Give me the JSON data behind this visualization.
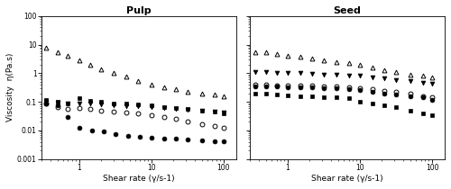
{
  "title_left": "Pulp",
  "title_right": "Seed",
  "xlabel": "Shear rate (γ/s-1)",
  "ylabel": "Viscosity  η(Pa.s)",
  "xlim": [
    0.3,
    150
  ],
  "ylim": [
    0.001,
    100
  ],
  "pulp": {
    "triangle_open": {
      "x": [
        0.35,
        0.5,
        0.7,
        1.0,
        1.4,
        2.0,
        3.0,
        4.5,
        6.5,
        10,
        15,
        22,
        32,
        50,
        75,
        100
      ],
      "y": [
        8.0,
        5.5,
        4.0,
        2.8,
        1.9,
        1.4,
        1.0,
        0.75,
        0.55,
        0.4,
        0.32,
        0.27,
        0.23,
        0.2,
        0.18,
        0.16
      ],
      "marker": "^",
      "filled": false,
      "color": "black",
      "ms": 3.5
    },
    "square_filled": {
      "x": [
        0.35,
        0.5,
        0.7,
        1.0,
        1.4,
        2.0,
        3.0,
        4.5,
        6.5,
        10,
        15,
        22,
        32,
        50,
        75,
        100
      ],
      "y": [
        0.12,
        0.1,
        0.09,
        0.13,
        0.11,
        0.1,
        0.09,
        0.09,
        0.08,
        0.075,
        0.065,
        0.06,
        0.055,
        0.05,
        0.045,
        0.04
      ],
      "marker": "s",
      "filled": true,
      "color": "black",
      "ms": 3.5
    },
    "triangle_filled": {
      "x": [
        0.35,
        0.5,
        0.7,
        1.0,
        1.4,
        2.0,
        3.0,
        4.5,
        6.5,
        10,
        15,
        22,
        32,
        50,
        75,
        100
      ],
      "y": [
        0.1,
        0.095,
        0.085,
        0.085,
        0.085,
        0.08,
        0.075,
        0.072,
        0.068,
        0.065,
        0.06,
        0.055,
        0.052,
        0.048,
        0.045,
        0.042
      ],
      "marker": "v",
      "filled": true,
      "color": "black",
      "ms": 3.5
    },
    "circle_open": {
      "x": [
        0.35,
        0.5,
        0.7,
        1.0,
        1.4,
        2.0,
        3.0,
        4.5,
        6.5,
        10,
        15,
        22,
        32,
        50,
        75,
        100
      ],
      "y": [
        0.085,
        0.065,
        0.055,
        0.06,
        0.055,
        0.05,
        0.045,
        0.042,
        0.038,
        0.035,
        0.03,
        0.025,
        0.02,
        0.016,
        0.014,
        0.012
      ],
      "marker": "o",
      "filled": false,
      "color": "black",
      "ms": 3.5
    },
    "circle_filled": {
      "x": [
        0.35,
        0.5,
        0.7,
        1.0,
        1.5,
        2.2,
        3.2,
        4.8,
        7,
        10,
        15,
        22,
        32,
        50,
        75,
        100
      ],
      "y": [
        0.09,
        0.075,
        0.03,
        0.012,
        0.01,
        0.009,
        0.0075,
        0.0065,
        0.0058,
        0.0055,
        0.0052,
        0.005,
        0.0048,
        0.0045,
        0.0043,
        0.0042
      ],
      "marker": "o",
      "filled": true,
      "color": "black",
      "ms": 3.5
    }
  },
  "seed": {
    "triangle_open": {
      "x": [
        0.35,
        0.5,
        0.7,
        1.0,
        1.5,
        2.2,
        3.2,
        4.8,
        7,
        10,
        15,
        22,
        32,
        50,
        75,
        100
      ],
      "y": [
        5.5,
        5.5,
        4.8,
        4.2,
        3.8,
        3.2,
        2.8,
        2.5,
        2.2,
        1.9,
        1.6,
        1.3,
        1.1,
        0.9,
        0.8,
        0.7
      ],
      "marker": "^",
      "filled": false,
      "color": "black",
      "ms": 3.5
    },
    "triangle_filled": {
      "x": [
        0.35,
        0.5,
        0.7,
        1.0,
        1.5,
        2.2,
        3.2,
        4.8,
        7,
        10,
        15,
        22,
        32,
        50,
        75,
        100
      ],
      "y": [
        1.1,
        1.1,
        1.05,
        1.0,
        1.0,
        0.95,
        0.9,
        0.88,
        0.85,
        0.8,
        0.72,
        0.65,
        0.58,
        0.52,
        0.46,
        0.42
      ],
      "marker": "v",
      "filled": true,
      "color": "black",
      "ms": 3.5
    },
    "circle_open": {
      "x": [
        0.35,
        0.5,
        0.7,
        1.0,
        1.5,
        2.2,
        3.2,
        4.8,
        7,
        10,
        15,
        22,
        32,
        50,
        75,
        100
      ],
      "y": [
        0.4,
        0.4,
        0.38,
        0.38,
        0.37,
        0.36,
        0.35,
        0.34,
        0.33,
        0.3,
        0.27,
        0.24,
        0.22,
        0.19,
        0.16,
        0.14
      ],
      "marker": "o",
      "filled": false,
      "color": "black",
      "ms": 3.5
    },
    "circle_filled": {
      "x": [
        0.35,
        0.5,
        0.7,
        1.0,
        1.5,
        2.2,
        3.2,
        4.8,
        7,
        10,
        15,
        22,
        32,
        50,
        75,
        100
      ],
      "y": [
        0.35,
        0.35,
        0.35,
        0.33,
        0.32,
        0.31,
        0.3,
        0.29,
        0.28,
        0.26,
        0.23,
        0.2,
        0.18,
        0.16,
        0.14,
        0.12
      ],
      "marker": "o",
      "filled": true,
      "color": "black",
      "ms": 3.5
    },
    "square_filled": {
      "x": [
        0.35,
        0.5,
        0.7,
        1.0,
        1.5,
        2.2,
        3.2,
        4.8,
        7,
        10,
        15,
        22,
        32,
        50,
        75,
        100
      ],
      "y": [
        0.2,
        0.19,
        0.18,
        0.17,
        0.16,
        0.16,
        0.15,
        0.14,
        0.13,
        0.1,
        0.085,
        0.075,
        0.065,
        0.05,
        0.04,
        0.033
      ],
      "marker": "s",
      "filled": true,
      "color": "black",
      "ms": 3.5
    }
  },
  "bg_color": "#ffffff",
  "plot_bg": "white",
  "title_fontsize": 8,
  "label_fontsize": 6.5,
  "tick_fontsize": 5.5
}
